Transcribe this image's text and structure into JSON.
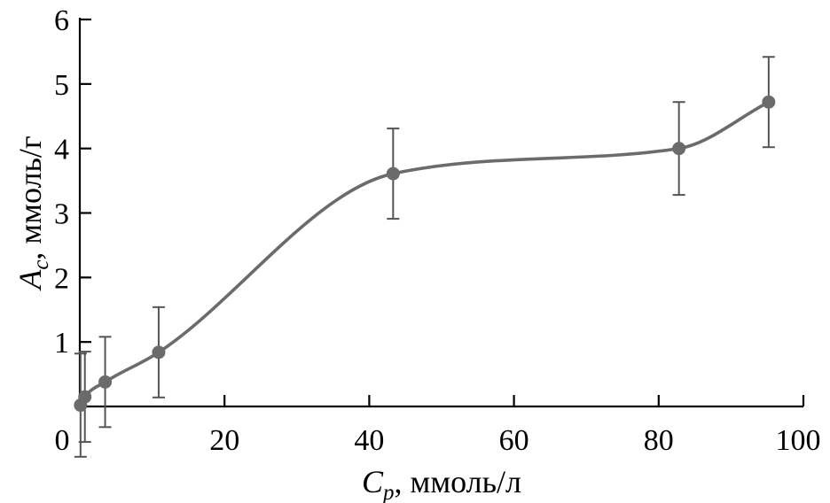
{
  "chart_data": {
    "type": "line",
    "x": [
      0.1,
      0.7,
      3.5,
      10.9,
      43.3,
      82.8,
      95.2
    ],
    "y": [
      0.02,
      0.15,
      0.38,
      0.84,
      3.61,
      4.0,
      4.72
    ],
    "yerr": [
      0.8,
      0.7,
      0.7,
      0.7,
      0.7,
      0.72,
      0.7
    ],
    "xlim": [
      0,
      100
    ],
    "ylim": [
      0,
      6
    ],
    "xticks": [
      "0",
      "20",
      "40",
      "60",
      "80",
      "100"
    ],
    "yticks": [
      "1",
      "2",
      "3",
      "4",
      "5",
      "6"
    ],
    "xlabel": {
      "main": "C",
      "sub": "p",
      "rest": ", ммоль/л"
    },
    "ylabel": {
      "main": "A",
      "sub": "c",
      "rest": ", ммоль/г"
    },
    "grid": false,
    "line_color": "#6b6b6b",
    "marker_color": "#6b6b6b",
    "errorbar_color": "#555555"
  }
}
